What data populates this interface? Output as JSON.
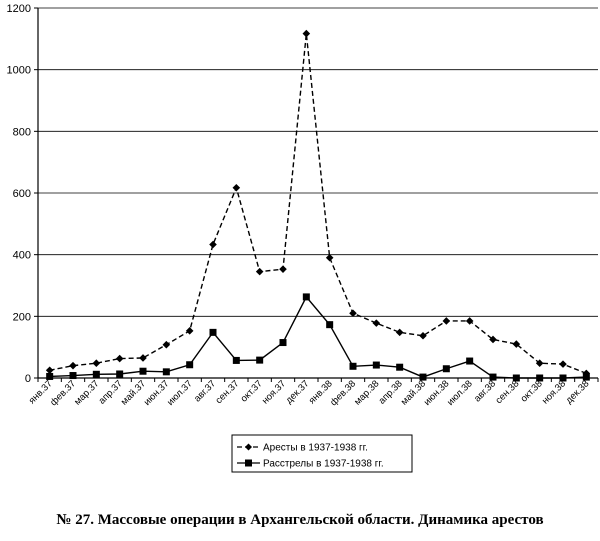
{
  "caption": "№ 27. Массовые операции в Архангельской области. Динамика арестов",
  "chart_data": {
    "type": "line",
    "categories": [
      "янв.37",
      "фев.37",
      "мар.37",
      "апр.37",
      "май.37",
      "июн.37",
      "июл.37",
      "авг.37",
      "сен.37",
      "окт.37",
      "ноя.37",
      "дек.37",
      "янв.38",
      "фев.38",
      "мар.38",
      "апр.38",
      "май.38",
      "июн.38",
      "июл.38",
      "авг.38",
      "сен.38",
      "окт.38",
      "ноя.38",
      "дек.38"
    ],
    "series": [
      {
        "name": "Аресты в 1937-1938 гг.",
        "line": "dashed",
        "marker": "diamond",
        "values": [
          25,
          40,
          48,
          63,
          65,
          108,
          153,
          433,
          617,
          345,
          353,
          1117,
          390,
          210,
          178,
          148,
          137,
          185,
          185,
          125,
          110,
          48,
          45,
          15
        ]
      },
      {
        "name": "Расстрелы в 1937-1938 гг.",
        "line": "solid",
        "marker": "square",
        "values": [
          5,
          8,
          12,
          13,
          22,
          20,
          43,
          148,
          57,
          58,
          115,
          263,
          173,
          38,
          42,
          35,
          3,
          30,
          55,
          3,
          0,
          0,
          0,
          3
        ]
      }
    ],
    "ylim": [
      0,
      1200
    ],
    "yticks": [
      0,
      200,
      400,
      600,
      800,
      1000,
      1200
    ],
    "grid": "horizontal",
    "legend_position": "bottom-center",
    "colors": {
      "line": "#000000",
      "grid": "#000000"
    }
  }
}
